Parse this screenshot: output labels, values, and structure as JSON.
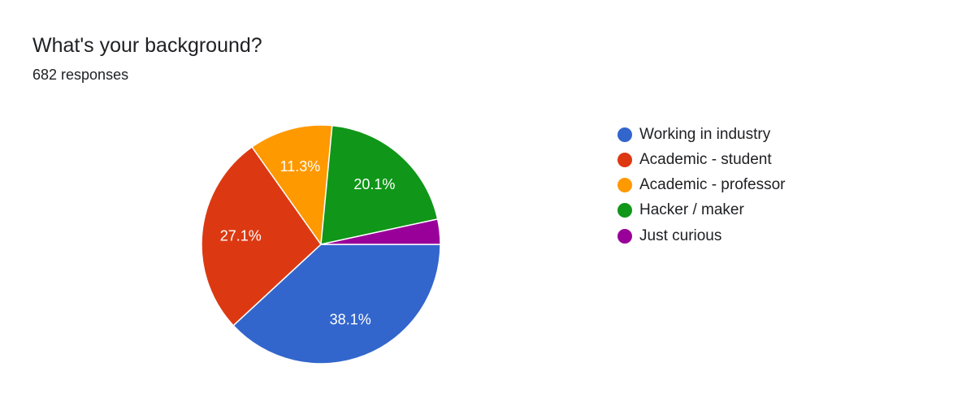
{
  "header": {
    "title": "What's your background?",
    "subtitle": "682 responses"
  },
  "chart_data": {
    "type": "pie",
    "title": "What's your background?",
    "subtitle": "682 responses",
    "categories": [
      "Working in industry",
      "Academic - student",
      "Academic - professor",
      "Hacker / maker",
      "Just curious"
    ],
    "values": [
      38.1,
      27.1,
      11.3,
      20.1,
      3.4
    ],
    "data_labels": [
      "38.1%",
      "27.1%",
      "11.3%",
      "20.1%",
      ""
    ],
    "colors": [
      "#3366cc",
      "#dc3912",
      "#ff9900",
      "#109618",
      "#990099"
    ],
    "legend_position": "right",
    "start_angle": "3 o'clock",
    "direction": "clockwise"
  }
}
